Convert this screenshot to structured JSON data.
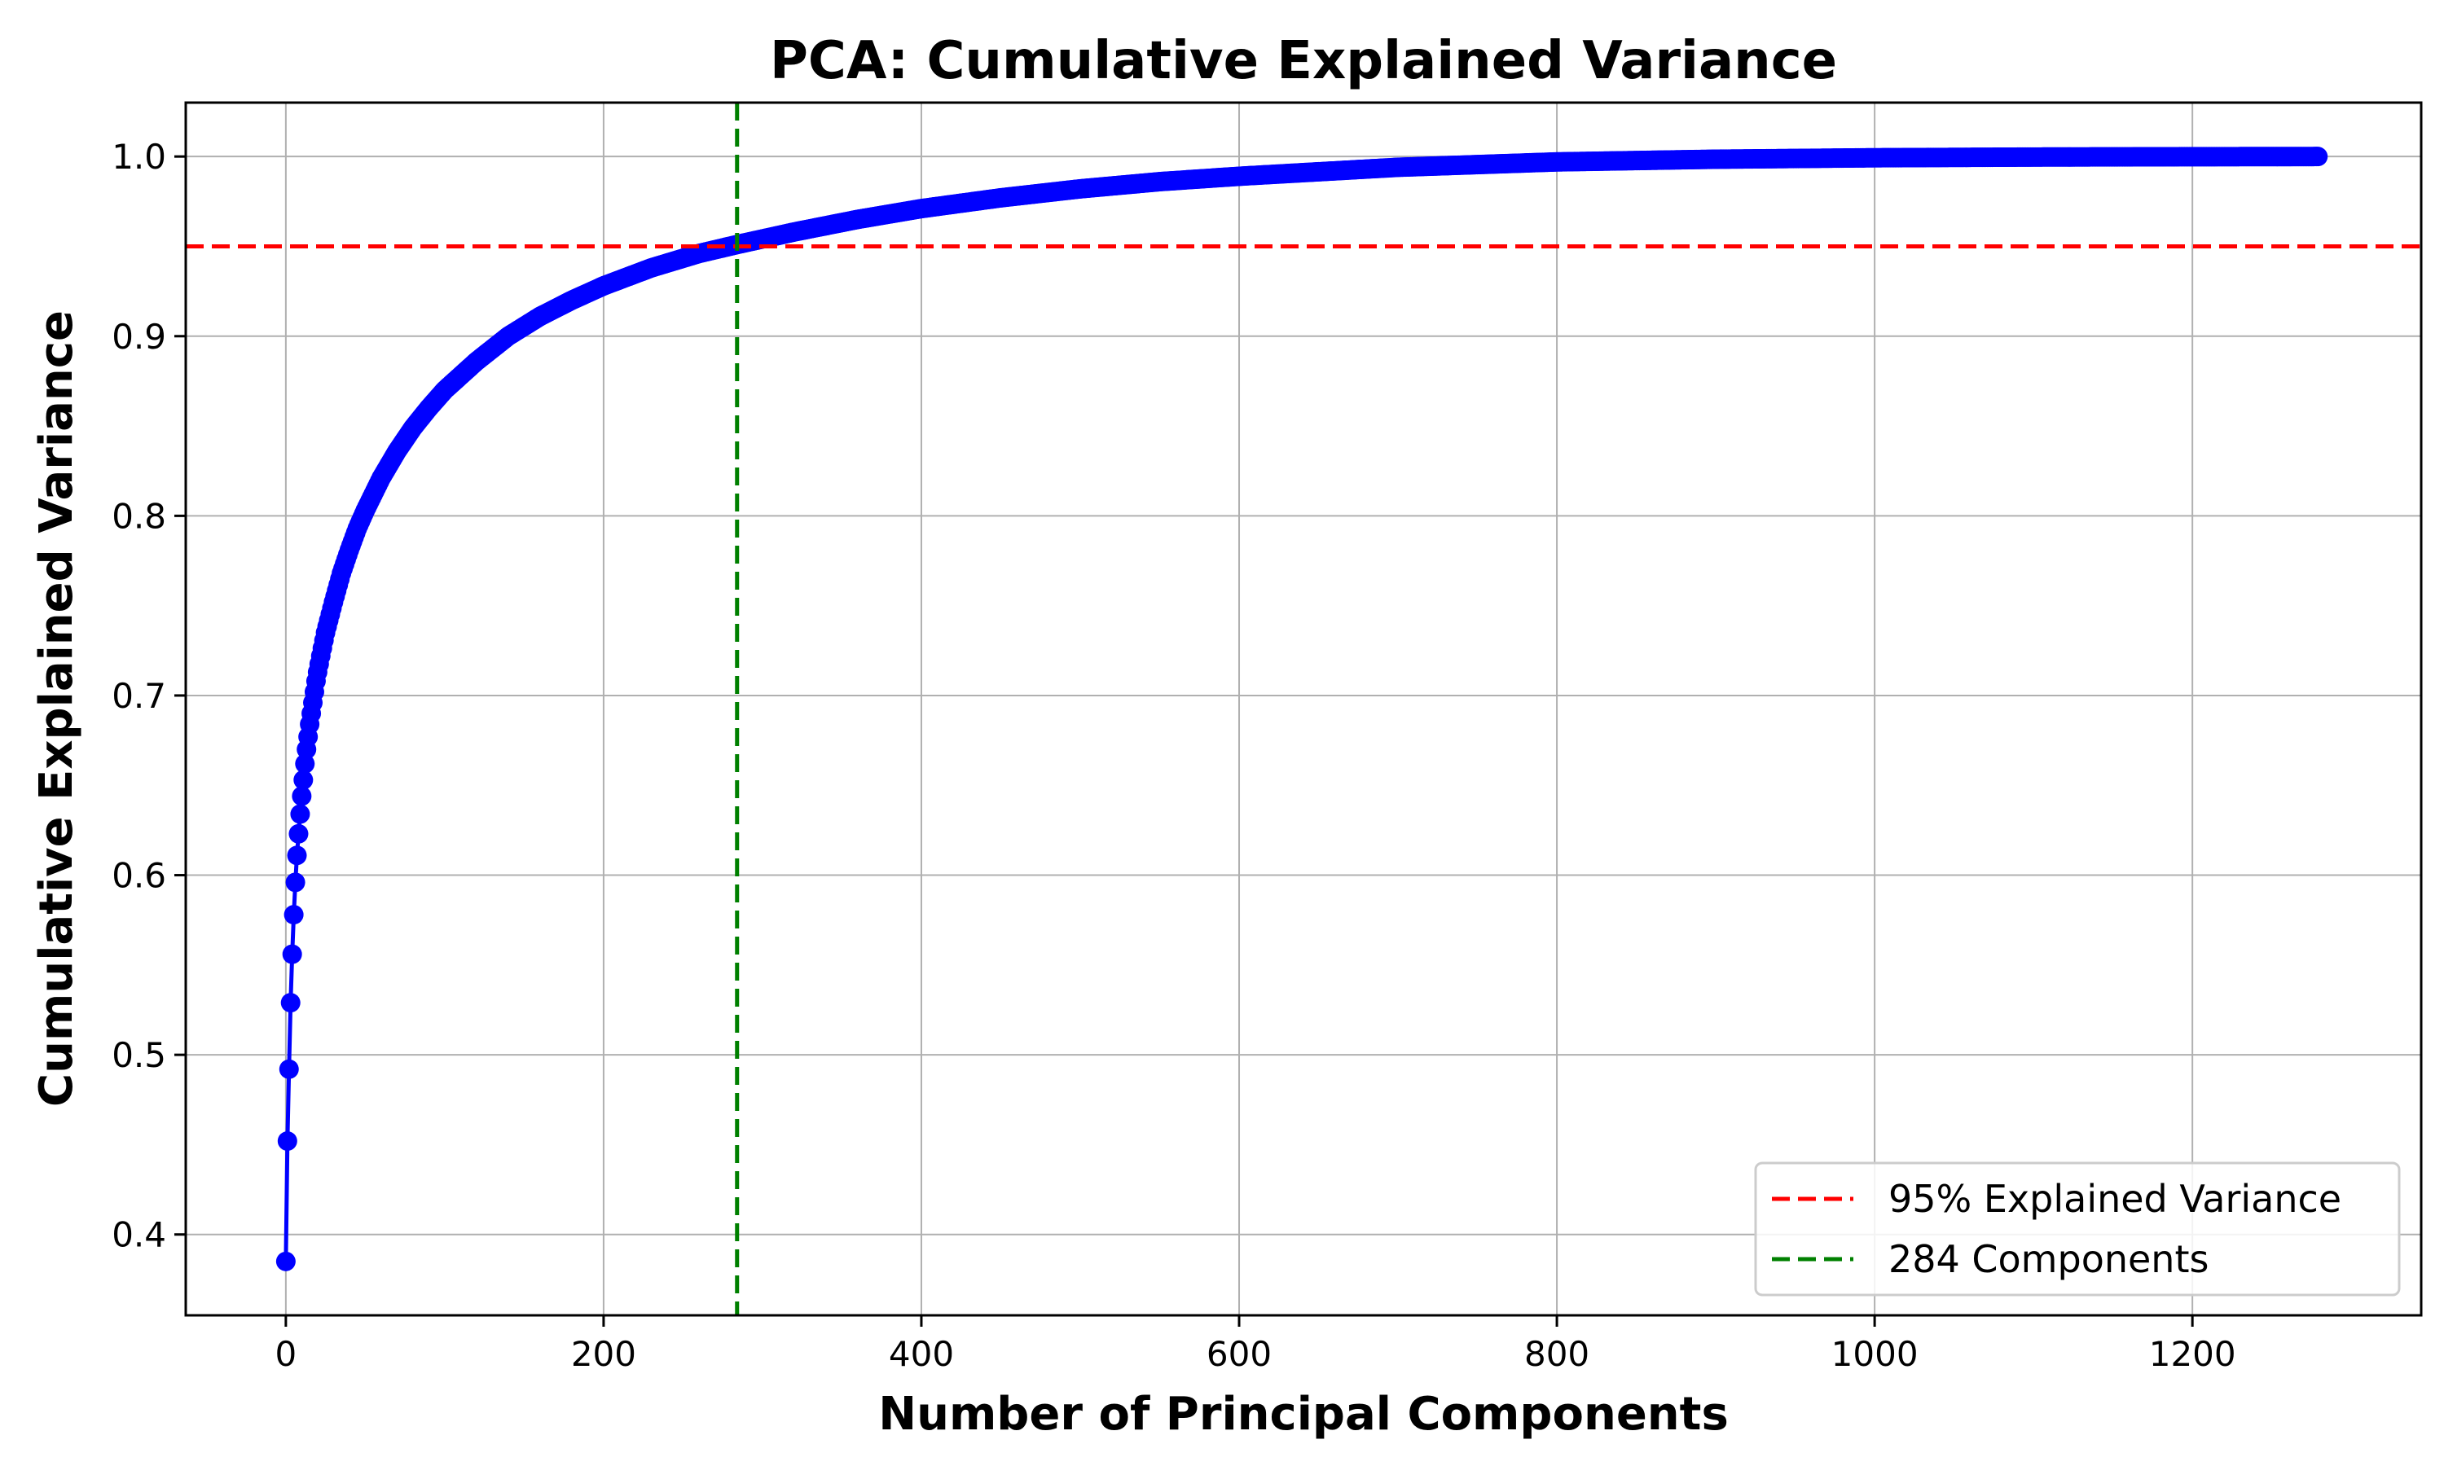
{
  "chart_data": {
    "type": "line",
    "title": "PCA: Cumulative Explained Variance",
    "xlabel": "Number of Principal Components",
    "ylabel": "Cumulative Explained Variance",
    "xlim": [
      -63,
      1344
    ],
    "ylim": [
      0.355,
      1.03
    ],
    "xticks": [
      0,
      200,
      400,
      600,
      800,
      1000,
      1200
    ],
    "yticks": [
      0.4,
      0.5,
      0.6,
      0.7,
      0.8,
      0.9,
      1.0
    ],
    "xtick_labels": [
      "0",
      "200",
      "400",
      "600",
      "800",
      "1000",
      "1200"
    ],
    "ytick_labels": [
      "0.4",
      "0.5",
      "0.6",
      "0.7",
      "0.8",
      "0.9",
      "1.0"
    ],
    "grid": true,
    "legend_position": "lower-right",
    "series": [
      {
        "marker": "circle",
        "color": "#0000ff",
        "x": [
          0,
          1,
          2,
          3,
          4,
          5,
          6,
          7,
          8,
          9,
          10,
          11,
          12,
          13,
          14,
          15,
          16,
          17,
          18,
          19,
          20,
          22,
          25,
          30,
          35,
          40,
          45,
          50,
          60,
          70,
          80,
          90,
          100,
          120,
          140,
          160,
          180,
          200,
          230,
          260,
          284,
          320,
          360,
          400,
          450,
          500,
          550,
          600,
          700,
          800,
          900,
          1000,
          1100,
          1200,
          1279
        ],
        "y": [
          0.385,
          0.452,
          0.492,
          0.529,
          0.556,
          0.578,
          0.596,
          0.611,
          0.623,
          0.634,
          0.644,
          0.653,
          0.662,
          0.67,
          0.677,
          0.684,
          0.69,
          0.696,
          0.702,
          0.708,
          0.713,
          0.722,
          0.735,
          0.752,
          0.768,
          0.781,
          0.793,
          0.803,
          0.821,
          0.836,
          0.849,
          0.86,
          0.87,
          0.886,
          0.9,
          0.911,
          0.92,
          0.928,
          0.938,
          0.946,
          0.951,
          0.958,
          0.965,
          0.971,
          0.977,
          0.982,
          0.986,
          0.989,
          0.994,
          0.997,
          0.9985,
          0.9993,
          0.9997,
          0.9999,
          1.0
        ]
      }
    ],
    "reference_lines": [
      {
        "orientation": "horizontal",
        "value": 0.95,
        "color": "#ff0000",
        "style": "dashed",
        "label": "95% Explained Variance"
      },
      {
        "orientation": "vertical",
        "value": 284,
        "color": "#008000",
        "style": "dashed",
        "label": "284 Components"
      }
    ],
    "colors": {
      "grid": "#b0b0b0",
      "frame": "#000000"
    }
  }
}
